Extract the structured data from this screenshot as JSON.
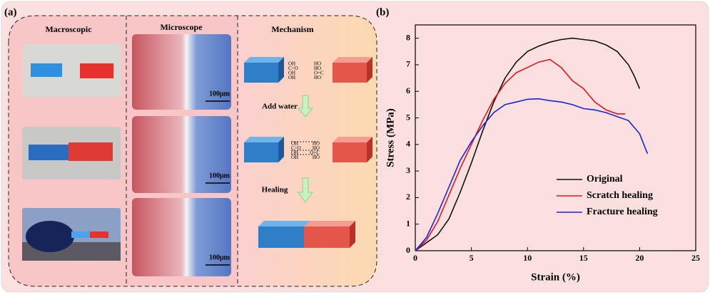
{
  "panel_a": {
    "label": "(a)",
    "columns": [
      "Macroscopic",
      "Microscope",
      "Mechanism"
    ],
    "scale_bars": [
      "100μm",
      "100μm",
      "100μm"
    ],
    "steps": [
      "Add water",
      "Healing"
    ],
    "left_groups": [
      "OH",
      "C=O",
      "OH",
      "OH"
    ],
    "right_groups": [
      "HO",
      "HO",
      "O=C",
      "HO"
    ]
  },
  "chart_data": {
    "type": "line",
    "panel_label": "(b)",
    "x_label": "Strain (%)",
    "y_label": "Stress (MPa)",
    "xlim": [
      0,
      25
    ],
    "xticks": [
      0,
      5,
      10,
      15,
      20,
      25
    ],
    "ylim": [
      0,
      8.5
    ],
    "yticks": [
      0,
      1,
      2,
      3,
      4,
      5,
      6,
      7,
      8
    ],
    "legend": "lower-right",
    "series": [
      {
        "name": "Original",
        "color": "#111111",
        "x": [
          0,
          1,
          2,
          3,
          4,
          5,
          6,
          7,
          8,
          9,
          10,
          11,
          12,
          13,
          14,
          15,
          16,
          17,
          18,
          19,
          19.5,
          20
        ],
        "values": [
          0,
          0.3,
          0.6,
          1.2,
          2.2,
          3.3,
          4.5,
          5.6,
          6.5,
          7.1,
          7.5,
          7.7,
          7.85,
          7.95,
          8,
          7.95,
          7.9,
          7.75,
          7.5,
          7.0,
          6.6,
          6.1
        ]
      },
      {
        "name": "Scratch healing",
        "color": "#e8141c",
        "x": [
          0,
          1,
          2,
          3,
          4,
          5,
          6,
          7,
          8,
          9,
          10,
          11,
          12,
          13,
          14,
          15,
          16,
          17,
          18,
          18.7
        ],
        "values": [
          0,
          0.4,
          1.1,
          2.1,
          3.1,
          4.0,
          4.9,
          5.7,
          6.3,
          6.7,
          6.9,
          7.1,
          7.2,
          6.9,
          6.4,
          6.1,
          5.6,
          5.3,
          5.15,
          5.15
        ]
      },
      {
        "name": "Fracture healing",
        "color": "#1a22e0",
        "x": [
          0,
          1,
          2,
          3,
          4,
          5,
          6,
          7,
          8,
          9,
          10,
          11,
          12,
          13,
          14,
          15,
          16,
          17,
          18,
          19,
          20,
          20.7
        ],
        "values": [
          0,
          0.5,
          1.4,
          2.4,
          3.4,
          4.1,
          4.7,
          5.2,
          5.5,
          5.6,
          5.7,
          5.72,
          5.65,
          5.6,
          5.5,
          5.35,
          5.3,
          5.2,
          5.05,
          4.9,
          4.4,
          3.65
        ]
      }
    ]
  }
}
